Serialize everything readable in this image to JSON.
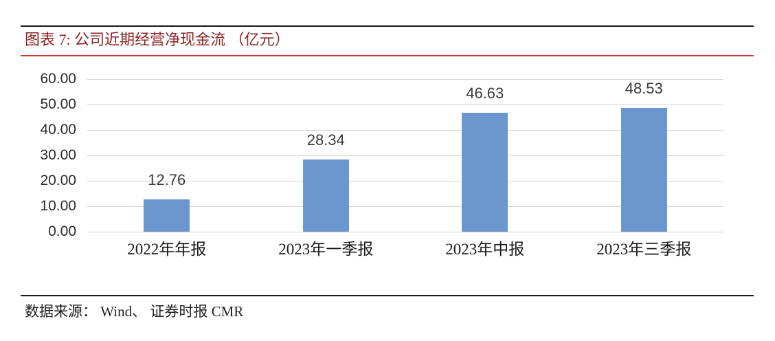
{
  "header": {
    "title": "图表 7:  公司近期经营净现金流 （亿元）"
  },
  "footer": {
    "source": "数据来源： Wind、 证券时报 CMR"
  },
  "colors": {
    "bar": "#6c96ce",
    "gridline": "#d4d4d4",
    "title_text": "#8b2323",
    "red_rule": "#c23b35",
    "dark_rule": "#1a1a1a"
  },
  "chart_data": {
    "type": "bar",
    "title": "公司近期经营净现金流（亿元）",
    "categories": [
      "2022年年报",
      "2023年一季报",
      "2023年中报",
      "2023年三季报"
    ],
    "values": [
      12.76,
      28.34,
      46.63,
      48.53
    ],
    "data_labels": [
      "12.76",
      "28.34",
      "46.63",
      "48.53"
    ],
    "xlabel": "",
    "ylabel": "",
    "ylim": [
      0,
      60
    ],
    "ytick_step": 10,
    "ytick_labels": [
      "0.00",
      "10.00",
      "20.00",
      "30.00",
      "40.00",
      "50.00",
      "60.00"
    ],
    "grid": true,
    "legend": false,
    "bar_color": "#6c96ce"
  }
}
